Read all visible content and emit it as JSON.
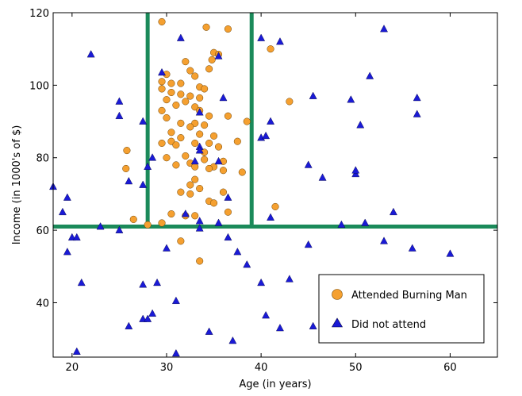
{
  "chart_data": {
    "type": "scatter",
    "title": "",
    "xlabel": "Age (in years)",
    "ylabel": "Income (in 1000's of $)",
    "xlim": [
      18,
      65
    ],
    "ylim": [
      25,
      120
    ],
    "xticks": [
      20,
      30,
      40,
      50,
      60
    ],
    "yticks": [
      40,
      60,
      80,
      100,
      120
    ],
    "xtick_labels": [
      "20",
      "30",
      "40",
      "50",
      "60"
    ],
    "ytick_labels": [
      "40",
      "60",
      "80",
      "100",
      "120"
    ],
    "grid": false,
    "legend_position": "bottom-right",
    "decision_boundaries": {
      "color": "#1b8a5a",
      "vertical_x": [
        28,
        39
      ],
      "horizontal_y": [
        61
      ]
    },
    "series": [
      {
        "name": "Attended Burning Man",
        "marker": "circle",
        "color": "#f5a030",
        "points": [
          [
            29.5,
            117.5
          ],
          [
            34.2,
            116
          ],
          [
            36.5,
            115.5
          ],
          [
            35,
            109
          ],
          [
            35.5,
            108.5
          ],
          [
            34.8,
            107
          ],
          [
            41,
            110
          ],
          [
            32,
            106.5
          ],
          [
            32.5,
            104
          ],
          [
            34.5,
            104.5
          ],
          [
            30,
            103
          ],
          [
            33,
            102.5
          ],
          [
            29.5,
            101
          ],
          [
            30.5,
            100.5
          ],
          [
            31.5,
            100.5
          ],
          [
            33.5,
            99.5
          ],
          [
            34,
            99
          ],
          [
            29.5,
            99
          ],
          [
            30.5,
            98
          ],
          [
            31.5,
            97.5
          ],
          [
            32.5,
            97
          ],
          [
            33.5,
            96.5
          ],
          [
            30,
            96
          ],
          [
            32,
            95.5
          ],
          [
            43,
            95.5
          ],
          [
            31,
            94.5
          ],
          [
            33,
            94
          ],
          [
            29.5,
            93
          ],
          [
            33.5,
            93
          ],
          [
            34.5,
            91.5
          ],
          [
            36.5,
            91.5
          ],
          [
            30,
            91
          ],
          [
            38.5,
            90
          ],
          [
            31.5,
            89.5
          ],
          [
            33,
            89.5
          ],
          [
            34,
            89
          ],
          [
            32.5,
            88.5
          ],
          [
            30.5,
            87
          ],
          [
            33.5,
            86.5
          ],
          [
            35,
            86
          ],
          [
            31.5,
            85.5
          ],
          [
            30.5,
            84.5
          ],
          [
            29.5,
            84
          ],
          [
            33,
            84
          ],
          [
            34.5,
            84
          ],
          [
            37.5,
            84.5
          ],
          [
            31,
            83.5
          ],
          [
            35.5,
            83
          ],
          [
            25.8,
            82
          ],
          [
            34,
            81.5
          ],
          [
            32,
            80.5
          ],
          [
            30,
            80
          ],
          [
            34,
            79.5
          ],
          [
            36,
            79
          ],
          [
            32.5,
            78.5
          ],
          [
            31,
            78
          ],
          [
            33,
            77.5
          ],
          [
            35,
            77.5
          ],
          [
            25.7,
            77
          ],
          [
            34.5,
            77
          ],
          [
            36,
            76.5
          ],
          [
            38,
            76
          ],
          [
            33,
            74
          ],
          [
            32.5,
            72.5
          ],
          [
            33.5,
            71.5
          ],
          [
            31.5,
            70.5
          ],
          [
            32.5,
            70
          ],
          [
            36,
            70.5
          ],
          [
            34.5,
            68
          ],
          [
            35,
            67.5
          ],
          [
            41.5,
            66.5
          ],
          [
            36.5,
            65
          ],
          [
            30.5,
            64.5
          ],
          [
            32,
            64
          ],
          [
            33,
            64
          ],
          [
            26.5,
            63
          ],
          [
            29.5,
            62
          ],
          [
            28,
            61.5
          ],
          [
            31.5,
            57
          ],
          [
            33.5,
            51.5
          ]
        ]
      },
      {
        "name": "Did not attend",
        "marker": "triangle",
        "color": "#1a1ad6",
        "points": [
          [
            22,
            108.5
          ],
          [
            25,
            95.5
          ],
          [
            25,
            91.5
          ],
          [
            27.5,
            90
          ],
          [
            18,
            72
          ],
          [
            19.5,
            69
          ],
          [
            19,
            65
          ],
          [
            26,
            73.5
          ],
          [
            27.5,
            72.5
          ],
          [
            28,
            77.5
          ],
          [
            28.5,
            80
          ],
          [
            20,
            58
          ],
          [
            20.5,
            58
          ],
          [
            19.5,
            54
          ],
          [
            21,
            45.5
          ],
          [
            23,
            61
          ],
          [
            25,
            60
          ],
          [
            27.5,
            45
          ],
          [
            29,
            45.5
          ],
          [
            30,
            55
          ],
          [
            31,
            40.5
          ],
          [
            26,
            33.5
          ],
          [
            27.5,
            35.5
          ],
          [
            28,
            35.5
          ],
          [
            28.5,
            37
          ],
          [
            20.5,
            26.5
          ],
          [
            31,
            26
          ],
          [
            29.5,
            103.5
          ],
          [
            31.5,
            113
          ],
          [
            33.5,
            92.5
          ],
          [
            35.5,
            108
          ],
          [
            36,
            96.5
          ],
          [
            33.5,
            83
          ],
          [
            33.5,
            82
          ],
          [
            33,
            79
          ],
          [
            35.5,
            79
          ],
          [
            36.5,
            69
          ],
          [
            32,
            64.5
          ],
          [
            33.5,
            62.5
          ],
          [
            33.5,
            60.5
          ],
          [
            35.5,
            62
          ],
          [
            36.5,
            58
          ],
          [
            37.5,
            54
          ],
          [
            38.5,
            50.5
          ],
          [
            40,
            45.5
          ],
          [
            40.5,
            36.5
          ],
          [
            42,
            33
          ],
          [
            43,
            46.5
          ],
          [
            45.5,
            33.5
          ],
          [
            34.5,
            32
          ],
          [
            37,
            29.5
          ],
          [
            40,
            113
          ],
          [
            42,
            112
          ],
          [
            40,
            85.5
          ],
          [
            40.5,
            86
          ],
          [
            41,
            90
          ],
          [
            41,
            63.5
          ],
          [
            45,
            78
          ],
          [
            45.5,
            97
          ],
          [
            46.5,
            74.5
          ],
          [
            49.5,
            96
          ],
          [
            50,
            75.5
          ],
          [
            50,
            76.5
          ],
          [
            50.5,
            89
          ],
          [
            51.5,
            102.5
          ],
          [
            53,
            115.5
          ],
          [
            51,
            62
          ],
          [
            48.5,
            61.5
          ],
          [
            54,
            65
          ],
          [
            53,
            57
          ],
          [
            56,
            55
          ],
          [
            56.5,
            96.5
          ],
          [
            56.5,
            92
          ],
          [
            60,
            53.5
          ],
          [
            45,
            56
          ]
        ]
      }
    ]
  }
}
